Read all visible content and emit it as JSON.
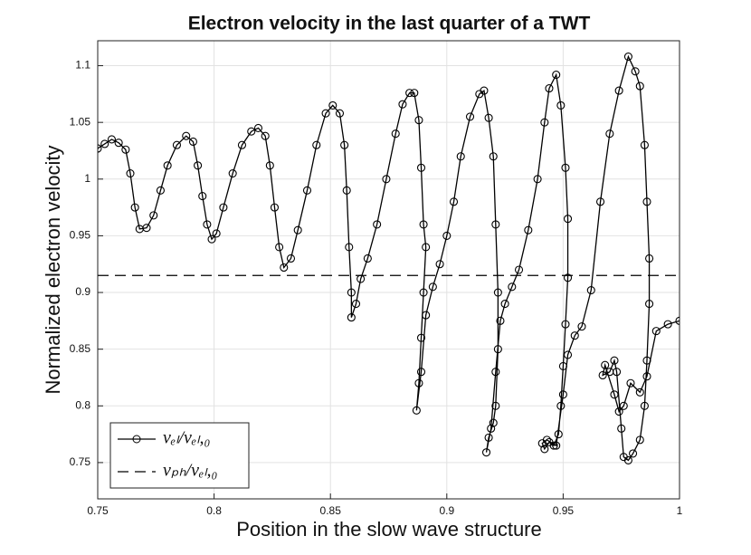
{
  "chart_data": {
    "type": "line",
    "title": "Electron velocity in the last quarter of a TWT",
    "x_label": "Position in the slow wave structure",
    "y_label": "Normalized electron velocity",
    "xlim": [
      0.75,
      1
    ],
    "xticks": [
      0.75,
      0.8,
      0.85,
      0.9,
      0.95,
      1
    ],
    "ylim": [
      0.718,
      1.122
    ],
    "yticks": [
      0.75,
      0.8,
      0.85,
      0.9,
      0.95,
      1,
      1.05,
      1.1
    ],
    "grid": true,
    "legend": "lower left",
    "series": [
      {
        "name": "vₑₗ/vₑₗ,₀",
        "color": "#000000",
        "marker": "circle",
        "dash": "solid",
        "x": [
          0.75,
          0.753,
          0.756,
          0.759,
          0.762,
          0.764,
          0.766,
          0.768,
          0.771,
          0.774,
          0.777,
          0.78,
          0.784,
          0.788,
          0.791,
          0.793,
          0.795,
          0.797,
          0.799,
          0.801,
          0.804,
          0.808,
          0.812,
          0.816,
          0.819,
          0.822,
          0.824,
          0.826,
          0.828,
          0.83,
          0.833,
          0.836,
          0.84,
          0.844,
          0.848,
          0.851,
          0.854,
          0.856,
          0.857,
          0.858,
          0.859,
          0.859,
          0.861,
          0.863,
          0.866,
          0.87,
          0.874,
          0.878,
          0.881,
          0.884,
          0.886,
          0.888,
          0.889,
          0.89,
          0.891,
          0.89,
          0.889,
          0.888,
          0.887,
          0.889,
          0.891,
          0.894,
          0.897,
          0.9,
          0.903,
          0.906,
          0.91,
          0.914,
          0.916,
          0.918,
          0.92,
          0.921,
          0.922,
          0.922,
          0.921,
          0.92,
          0.918,
          0.917,
          0.919,
          0.921,
          0.923,
          0.925,
          0.928,
          0.931,
          0.935,
          0.939,
          0.942,
          0.944,
          0.947,
          0.949,
          0.951,
          0.952,
          0.952,
          0.951,
          0.95,
          0.949,
          0.948,
          0.946,
          0.944,
          0.942,
          0.941,
          0.943,
          0.947,
          0.95,
          0.952,
          0.955,
          0.958,
          0.962,
          0.966,
          0.97,
          0.974,
          0.978,
          0.981,
          0.983,
          0.985,
          0.986,
          0.987,
          0.987,
          0.986,
          0.985,
          0.983,
          0.98,
          0.978,
          0.976,
          0.975,
          0.973,
          0.972,
          0.97,
          0.967,
          0.968,
          0.972,
          0.974,
          0.976,
          0.979,
          0.983,
          0.986,
          0.99,
          0.995,
          1.0
        ],
        "values": [
          1.027,
          1.031,
          1.035,
          1.032,
          1.026,
          1.005,
          0.975,
          0.956,
          0.957,
          0.968,
          0.99,
          1.012,
          1.03,
          1.038,
          1.033,
          1.012,
          0.985,
          0.96,
          0.947,
          0.952,
          0.975,
          1.005,
          1.03,
          1.042,
          1.045,
          1.038,
          1.012,
          0.975,
          0.94,
          0.922,
          0.93,
          0.955,
          0.99,
          1.03,
          1.058,
          1.065,
          1.058,
          1.03,
          0.99,
          0.94,
          0.9,
          0.878,
          0.89,
          0.912,
          0.93,
          0.96,
          1.0,
          1.04,
          1.066,
          1.076,
          1.076,
          1.052,
          1.01,
          0.96,
          0.94,
          0.9,
          0.86,
          0.82,
          0.796,
          0.83,
          0.88,
          0.905,
          0.925,
          0.95,
          0.98,
          1.02,
          1.055,
          1.075,
          1.078,
          1.054,
          1.02,
          0.96,
          0.9,
          0.85,
          0.8,
          0.785,
          0.772,
          0.759,
          0.78,
          0.83,
          0.875,
          0.89,
          0.905,
          0.92,
          0.955,
          1.0,
          1.05,
          1.08,
          1.092,
          1.065,
          1.01,
          0.965,
          0.913,
          0.872,
          0.835,
          0.8,
          0.775,
          0.765,
          0.768,
          0.762,
          0.767,
          0.77,
          0.765,
          0.81,
          0.845,
          0.862,
          0.87,
          0.902,
          0.98,
          1.04,
          1.078,
          1.108,
          1.095,
          1.082,
          1.03,
          0.98,
          0.93,
          0.89,
          0.84,
          0.8,
          0.77,
          0.758,
          0.752,
          0.755,
          0.78,
          0.83,
          0.84,
          0.83,
          0.827,
          0.836,
          0.81,
          0.795,
          0.8,
          0.82,
          0.812,
          0.826,
          0.866,
          0.872,
          0.875
        ]
      },
      {
        "name": "vₚₕ/vₑₗ,₀",
        "color": "#000000",
        "marker": "none",
        "dash": "dashed",
        "x": [
          0.75,
          1
        ],
        "values": [
          0.915,
          0.915
        ]
      }
    ]
  }
}
